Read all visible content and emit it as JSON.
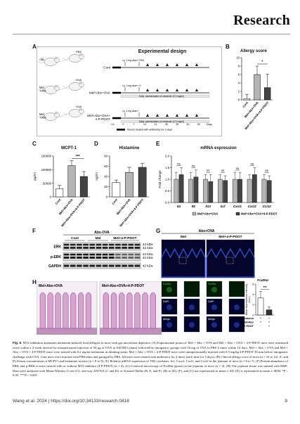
{
  "header": {
    "journal": "Research"
  },
  "figure": {
    "panelA": {
      "label": "A",
      "title": "Experimental design",
      "groups": [
        {
          "name": "Cont",
          "top_note": "i.p. 1 mg alum+ PBS",
          "bottom_note": "",
          "mouse_tag": "PBS"
        },
        {
          "name": "Mel+Abx+OVA",
          "top_note": "i.p. 1 mg alum+ S",
          "bottom_note": "Daily: administration of melatonin (0.2 mg/ml)",
          "mouse_tag": "OVA"
        },
        {
          "name": "Mel+Abx+OVA+\n4-P-PDOT",
          "top_note": "i.p. 1 mg alum+",
          "bottom_note": "Daily: administration of melatonin (0.2 mg/ml)",
          "mouse_tag": "OVA"
        }
      ],
      "left_mice": [
        "Abx",
        "Mel\n+Abx",
        "Mel\n+Abx"
      ],
      "days": [
        "-14",
        "0",
        "7",
        "14",
        "21",
        "28",
        "35",
        "42",
        "49",
        "Days"
      ],
      "legend": "Mouse treated with antibiotics for 3 days"
    },
    "panelB": {
      "label": "B",
      "title": "Allergy score"
    },
    "panelC": {
      "label": "C",
      "title": "MCPT-1",
      "ylabel": "pg/ml",
      "sig": "***"
    },
    "panelD": {
      "label": "D",
      "title": "Histamine",
      "ylabel": "ng/ml"
    },
    "panelE": {
      "label": "E",
      "title": "mRNA expression",
      "ylabel": "Fold change",
      "sig": "ns"
    },
    "panelF": {
      "label": "F",
      "group_header": "Abx-OVA",
      "lanes": [
        "Cont",
        "Mel",
        "Mel+4-P-PDOT"
      ],
      "rows": [
        {
          "name": "ERK",
          "kda": "44 kDa\n42 kDa"
        },
        {
          "name": "p-ERK",
          "kda": "44 kDa\n42 kDa"
        },
        {
          "name": "GAPDH",
          "kda": "42 kDa"
        }
      ]
    },
    "panelG": {
      "label": "G",
      "group_header": "Abx+OVA",
      "cols": [
        "Mel",
        "Mel+4-P-PDOT"
      ],
      "inset_labels": [
        "FcεRIα",
        "DAPI",
        "Merge"
      ],
      "bar_title": "FcεRIα",
      "bar_ylabel": "Mean fluorescence intensity\n(A.U.)",
      "sig": "***",
      "treatment_rows": [
        {
          "name": "Melatonin",
          "marks": [
            "+",
            "+"
          ]
        },
        {
          "name": "OVA/Abx",
          "marks": [
            "+",
            "+"
          ]
        },
        {
          "name": "4-P-PDOT",
          "marks": [
            "-",
            "+"
          ]
        }
      ]
    },
    "panelH": {
      "label": "H",
      "left": "Mel+Abx+OVA",
      "right": "Mel+Abx+OVA+4-P-PDOT"
    }
  },
  "chart_data": [
    {
      "type": "bar",
      "title": "Allergy score",
      "categories": [
        "Cont",
        "Mel+Abx+OVA",
        "Mel+Abx+OVA+4-P-PDOT"
      ],
      "values": [
        0.3,
        6.0,
        2.9
      ],
      "errors": [
        1.0,
        2.0,
        3.2
      ],
      "ylim": [
        0,
        10
      ],
      "yticks": [
        0,
        2,
        4,
        6,
        8,
        10
      ],
      "colors": [
        "#ffffff",
        "#b5b5b5",
        "#444444"
      ],
      "annotation": "*"
    },
    {
      "type": "bar",
      "title": "MCPT-1",
      "ylabel": "pg/ml",
      "categories": [
        "Cont",
        "Mel+Abx+OVA",
        "Mel+Abx+OVA+4-P-PDOT"
      ],
      "values": [
        30000,
        115000,
        75000
      ],
      "errors": [
        12000,
        18000,
        18000
      ],
      "ylim": [
        0,
        150000
      ],
      "yticks": [
        0,
        50000,
        100000,
        150000
      ],
      "colors": [
        "#ffffff",
        "#b5b5b5",
        "#444444"
      ],
      "annotation": "***"
    },
    {
      "type": "bar",
      "title": "Histamine",
      "ylabel": "ng/ml",
      "categories": [
        "Cont",
        "Mel+Abx+OVA",
        "Mel+Abx+OVA+4-P-PDOT"
      ],
      "values": [
        28,
        48,
        58
      ],
      "errors": [
        5,
        10,
        8
      ],
      "ylim": [
        0,
        80
      ],
      "yticks": [
        0,
        20,
        40,
        60,
        80
      ],
      "colors": [
        "#ffffff",
        "#b5b5b5",
        "#444444"
      ]
    },
    {
      "type": "bar",
      "title": "mRNA expression",
      "ylabel": "Fold change",
      "categories": [
        "Il4",
        "Il5",
        "Il13",
        "Scf",
        "Cxcl1",
        "Cxcl2",
        "Ccl12"
      ],
      "series": [
        {
          "name": "Mel+Abx+OVA",
          "values": [
            1.0,
            1.0,
            1.0,
            1.0,
            1.0,
            1.0,
            1.0
          ],
          "errors": [
            0.3,
            0.3,
            0.2,
            0.2,
            0.3,
            0.2,
            0.2
          ],
          "color": "#b5b5b5"
        },
        {
          "name": "Mel+Abx+OVA+4-P-PDOT",
          "values": [
            1.2,
            1.1,
            0.9,
            0.95,
            1.0,
            1.2,
            0.95
          ],
          "errors": [
            0.3,
            0.3,
            0.3,
            0.2,
            0.3,
            0.3,
            0.2
          ],
          "color": "#444444"
        }
      ],
      "ylim": [
        0,
        2.0
      ],
      "yticks": [
        0.0,
        0.5,
        1.0,
        1.5,
        2.0
      ],
      "legend_position": "bottom",
      "annotation": "ns"
    },
    {
      "type": "bar",
      "title": "FcεRIα",
      "ylabel": "Mean fluorescence intensity\n(A.U.)",
      "categories": [
        "Mel",
        "Mel+4-P-PDOT"
      ],
      "values": [
        3.3,
        1.0
      ],
      "errors": [
        1.3,
        0.6
      ],
      "ylim": [
        0,
        6
      ],
      "yticks": [
        0,
        2,
        4,
        6
      ],
      "colors": [
        "#ffffff",
        "#333333"
      ],
      "annotation": "***"
    }
  ],
  "caption": {
    "fig_label": "Fig. 6.",
    "text": "MT2 inhibition attenuates melatonin-induced food allergies in mice with gut microbiota depletion. (A) Experimental protocol. Mel + Abx + OVA and Mel + Abx + OVA + 4-P-PDOT mice were sensitized twice within a 2-week interval by intraperitoneal injection of 50 μg of OVA in Al(OH)3 (alum) followed by intragastric gavage with 50 mg of OVA in PBS 6 times within 12 days. Mel + Abx + OVA and Mel + Abx + OVA + 4-P-PDOT mice were treated with 0.2 mg/ml melatonin in drinking water. Mel + Abx + OVA + 4-P-PDOT mice were intraperitoneally injected with 0.5 mg/kg 4-P-PDOT 30 min before intragastric challenge with OVA. Cont mice were injected with PBS/alum and gavaged by PBS. All mice were treated with antibiotics for 3 times (each time for 5 days). (B) Clinical allergy score of mice (n = 10 to 12). (C and D) Serum concentration of MCPT1 and histamine in mice (n = 8 to 9). (E) Relative mRNA expression of TH2 cytokines, Scf, Cxcr2, Cxcl1, and Cxcl2 in the jejunum of mice (n = 6 to 7). (F) Protein abundance of ERK and p-ERK in mice treated with or without MT2 inhibitor (4-P-PDOT) (n = 4). (G) Confocal microscopy of FcεRIα (green) in the jejunum of mice (n = 3). (H) The jejunum tissue was stained with H&E. Data were analyzed with Mann-Whitney U test (G), one-way ANOVA (C and D), or Kruskal-Wallis (B, E, and F). (B) to (D), (F), and (G) are represented as mean ± SD. (E) is represented as mean ± SEM. *P < 0.05. ***P < 0.001."
  },
  "footer": {
    "citation": "Wang et al. 2024 | https://doi.org/10.34133/research.0418",
    "page": "9"
  },
  "icons": {
    "mouse": "mouse-icon",
    "arrow": "arrow-icon"
  }
}
